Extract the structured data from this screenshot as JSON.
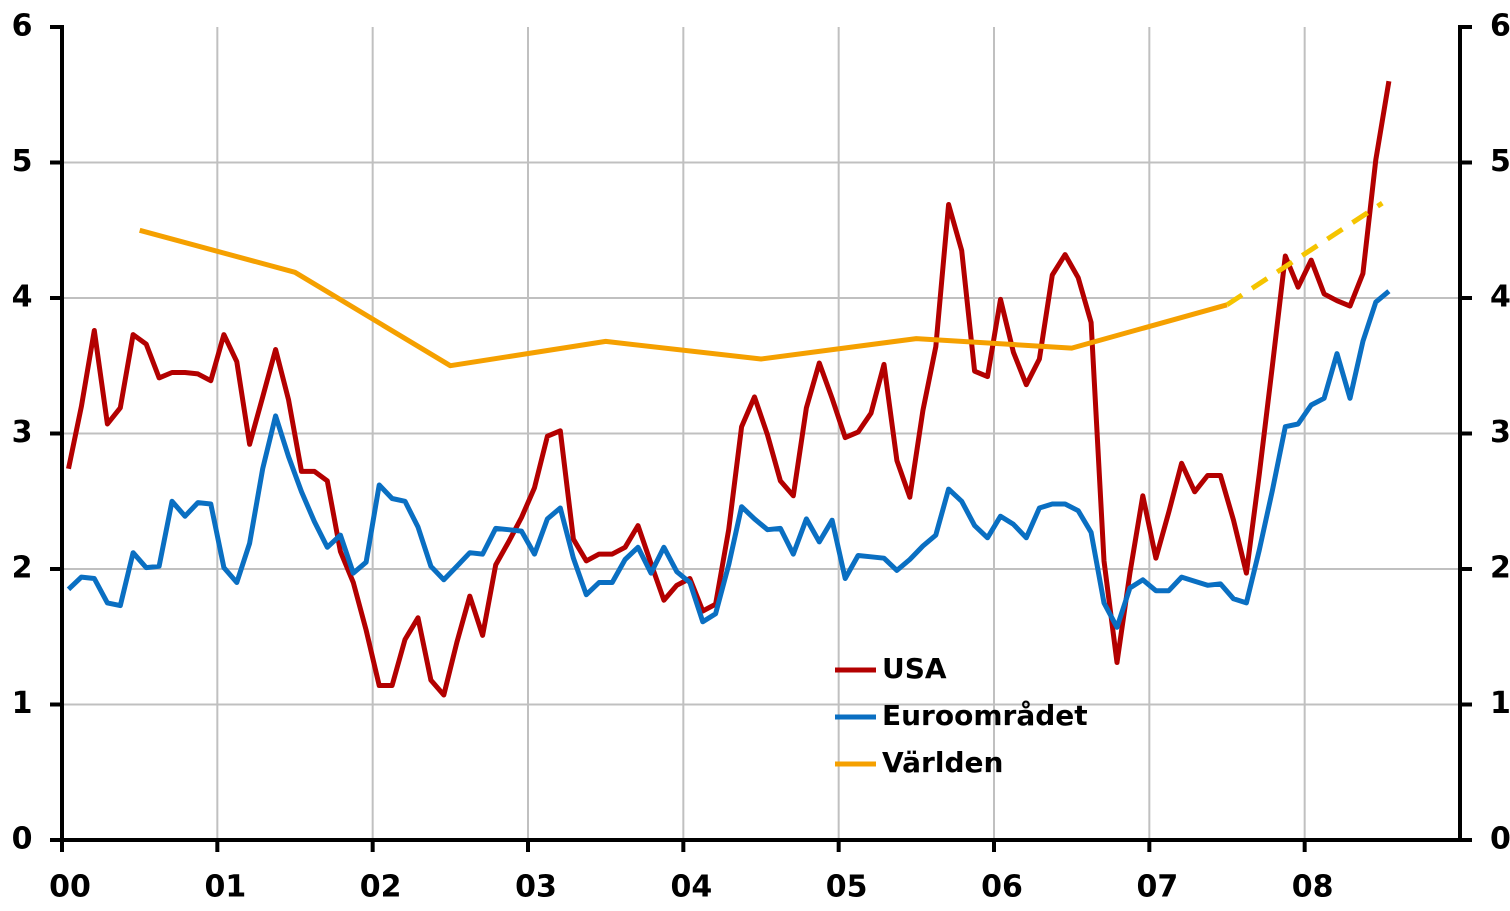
{
  "chart_data": {
    "type": "line",
    "xlim": [
      2000,
      2009
    ],
    "xticks": [
      {
        "value": 2000,
        "label": "00"
      },
      {
        "value": 2001,
        "label": "01"
      },
      {
        "value": 2002,
        "label": "02"
      },
      {
        "value": 2003,
        "label": "03"
      },
      {
        "value": 2004,
        "label": "04"
      },
      {
        "value": 2005,
        "label": "05"
      },
      {
        "value": 2006,
        "label": "06"
      },
      {
        "value": 2007,
        "label": "07"
      },
      {
        "value": 2008,
        "label": "08"
      }
    ],
    "ylim": [
      0,
      6
    ],
    "yticks": [
      0,
      1,
      2,
      3,
      4,
      5,
      6
    ],
    "y2lim": [
      0,
      6
    ],
    "y2ticks": [
      0,
      1,
      2,
      3,
      4,
      5,
      6
    ],
    "grid": true,
    "x": [
      2000.042,
      2000.125,
      2000.208,
      2000.292,
      2000.375,
      2000.458,
      2000.542,
      2000.625,
      2000.708,
      2000.792,
      2000.875,
      2000.958,
      2001.042,
      2001.125,
      2001.208,
      2001.292,
      2001.375,
      2001.458,
      2001.542,
      2001.625,
      2001.708,
      2001.792,
      2001.875,
      2001.958,
      2002.042,
      2002.125,
      2002.208,
      2002.292,
      2002.375,
      2002.458,
      2002.542,
      2002.625,
      2002.708,
      2002.792,
      2002.875,
      2002.958,
      2003.042,
      2003.125,
      2003.208,
      2003.292,
      2003.375,
      2003.458,
      2003.542,
      2003.625,
      2003.708,
      2003.792,
      2003.875,
      2003.958,
      2004.042,
      2004.125,
      2004.208,
      2004.292,
      2004.375,
      2004.458,
      2004.542,
      2004.625,
      2004.708,
      2004.792,
      2004.875,
      2004.958,
      2005.042,
      2005.125,
      2005.208,
      2005.292,
      2005.375,
      2005.458,
      2005.542,
      2005.625,
      2005.708,
      2005.792,
      2005.875,
      2005.958,
      2006.042,
      2006.125,
      2006.208,
      2006.292,
      2006.375,
      2006.458,
      2006.542,
      2006.625,
      2006.708,
      2006.792,
      2006.875,
      2006.958,
      2007.042,
      2007.125,
      2007.208,
      2007.292,
      2007.375,
      2007.458,
      2007.542,
      2007.625,
      2007.708,
      2007.792,
      2007.875,
      2007.958,
      2008.042,
      2008.125,
      2008.208,
      2008.292,
      2008.375,
      2008.458,
      2008.542
    ],
    "series": [
      {
        "name": "USA",
        "color": "#b30000",
        "values": [
          2.74,
          3.2,
          3.76,
          3.07,
          3.19,
          3.73,
          3.66,
          3.41,
          3.45,
          3.45,
          3.44,
          3.39,
          3.73,
          3.53,
          2.92,
          3.27,
          3.62,
          3.25,
          2.72,
          2.72,
          2.65,
          2.13,
          1.9,
          1.55,
          1.14,
          1.14,
          1.48,
          1.64,
          1.18,
          1.07,
          1.46,
          1.8,
          1.51,
          2.03,
          2.2,
          2.38,
          2.6,
          2.98,
          3.02,
          2.22,
          2.06,
          2.11,
          2.11,
          2.16,
          2.32,
          2.04,
          1.77,
          1.88,
          1.93,
          1.69,
          1.74,
          2.29,
          3.05,
          3.27,
          2.99,
          2.65,
          2.54,
          3.19,
          3.52,
          3.26,
          2.97,
          3.01,
          3.15,
          3.51,
          2.8,
          2.53,
          3.17,
          3.64,
          4.69,
          4.35,
          3.46,
          3.42,
          3.99,
          3.6,
          3.36,
          3.55,
          4.17,
          4.32,
          4.15,
          3.82,
          2.06,
          1.31,
          1.97,
          2.54,
          2.08,
          2.42,
          2.78,
          2.57,
          2.69,
          2.69,
          2.36,
          1.97,
          2.7,
          3.5,
          4.31,
          4.08,
          4.28,
          4.03,
          3.98,
          3.94,
          4.18,
          5.02,
          5.6
        ]
      },
      {
        "name": "Euroområdet",
        "color": "#0a6fc2",
        "values": [
          1.85,
          1.94,
          1.93,
          1.75,
          1.73,
          2.12,
          2.01,
          2.02,
          2.5,
          2.39,
          2.49,
          2.48,
          2.01,
          1.9,
          2.19,
          2.74,
          3.13,
          2.83,
          2.57,
          2.35,
          2.16,
          2.25,
          1.97,
          2.05,
          2.62,
          2.52,
          2.5,
          2.31,
          2.02,
          1.92,
          2.02,
          2.12,
          2.11,
          2.3,
          2.29,
          2.28,
          2.11,
          2.37,
          2.45,
          2.08,
          1.81,
          1.9,
          1.9,
          2.07,
          2.16,
          1.97,
          2.16,
          1.98,
          1.9,
          1.61,
          1.67,
          2.03,
          2.46,
          2.37,
          2.29,
          2.3,
          2.11,
          2.37,
          2.2,
          2.36,
          1.93,
          2.1,
          2.09,
          2.08,
          1.99,
          2.07,
          2.17,
          2.25,
          2.59,
          2.5,
          2.32,
          2.23,
          2.39,
          2.33,
          2.23,
          2.45,
          2.48,
          2.48,
          2.43,
          2.27,
          1.75,
          1.57,
          1.86,
          1.92,
          1.84,
          1.84,
          1.94,
          1.91,
          1.88,
          1.89,
          1.78,
          1.75,
          2.14,
          2.58,
          3.05,
          3.07,
          3.21,
          3.26,
          3.59,
          3.26,
          3.68,
          3.97,
          4.05
        ]
      },
      {
        "name": "Världen",
        "color": "#f5a000",
        "x": [
          2000.5,
          2001.5,
          2002.5,
          2003.5,
          2004.5,
          2005.5,
          2006.5,
          2007.5
        ],
        "values": [
          4.5,
          4.19,
          3.5,
          3.68,
          3.55,
          3.7,
          3.63,
          3.95
        ]
      },
      {
        "color": "#f5c400",
        "dashed": true,
        "x": [
          2007.5,
          2008.5
        ],
        "values": [
          3.95,
          4.7
        ]
      }
    ]
  }
}
